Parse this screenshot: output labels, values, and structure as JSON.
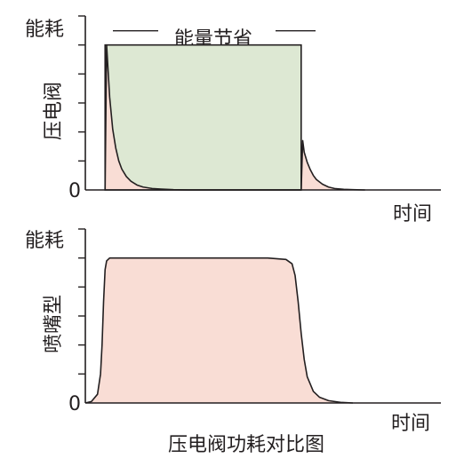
{
  "title": "压电阀功耗对比图",
  "colors": {
    "axis": "#231f20",
    "savings_fill": "#dde8d3",
    "consumption_fill": "#f9ddd5",
    "curve": "#231f20"
  },
  "chart_data": [
    {
      "type": "area",
      "name": "压电阀",
      "ylabel": "能耗",
      "xlabel": "时间",
      "y_origin_label": "0",
      "annotation": "能量节省",
      "xlim": [
        0,
        100
      ],
      "ylim": [
        0,
        6
      ],
      "y_ticks": [
        0,
        1,
        2,
        3,
        4,
        5,
        6
      ],
      "plateau_level": 5,
      "series": [
        {
          "role": "consumption",
          "x": [
            6.5,
            7.0,
            7.5,
            8.0,
            9.0,
            10.0,
            11.0,
            12.0,
            13.5,
            15.0,
            17.0,
            19.0,
            22.0,
            25.0,
            29.0,
            34.0,
            40.0,
            50.0,
            60.0,
            70.0,
            71.0,
            71.5,
            72.0,
            73.0,
            74.0,
            75.0,
            76.0,
            78.0,
            80.0,
            82.0,
            85.0,
            88.0,
            92.0
          ],
          "y": [
            0,
            5.0,
            4.1,
            3.2,
            2.1,
            1.45,
            1.0,
            0.72,
            0.46,
            0.3,
            0.17,
            0.1,
            0.05,
            0.03,
            0.01,
            0,
            0,
            0,
            0,
            0,
            0,
            1.7,
            1.3,
            0.95,
            0.7,
            0.5,
            0.36,
            0.2,
            0.1,
            0.05,
            0.02,
            0.01,
            0
          ]
        },
        {
          "role": "savings",
          "x": [
            6.5,
            71.0
          ],
          "y": [
            5,
            5
          ]
        }
      ]
    },
    {
      "type": "area",
      "name": "喷嘴型",
      "ylabel": "能耗",
      "xlabel": "时间",
      "y_origin_label": "0",
      "xlim": [
        0,
        100
      ],
      "ylim": [
        0,
        6
      ],
      "y_ticks": [
        0,
        1,
        2,
        3,
        4,
        5,
        6
      ],
      "series": [
        {
          "role": "consumption",
          "x": [
            0,
            2,
            4,
            5,
            5.5,
            6,
            6.5,
            7.0,
            8.0,
            10.0,
            60.0,
            66.0,
            68.0,
            69.0,
            70.0,
            71.0,
            72.0,
            73.0,
            75.0,
            77.0,
            80.0,
            84.0,
            88.0
          ],
          "y": [
            0,
            0.05,
            0.3,
            1.0,
            2.0,
            3.5,
            4.6,
            4.9,
            5.0,
            5.0,
            5.0,
            4.95,
            4.8,
            4.4,
            3.5,
            2.4,
            1.5,
            0.9,
            0.4,
            0.2,
            0.08,
            0.02,
            0
          ]
        }
      ]
    }
  ]
}
